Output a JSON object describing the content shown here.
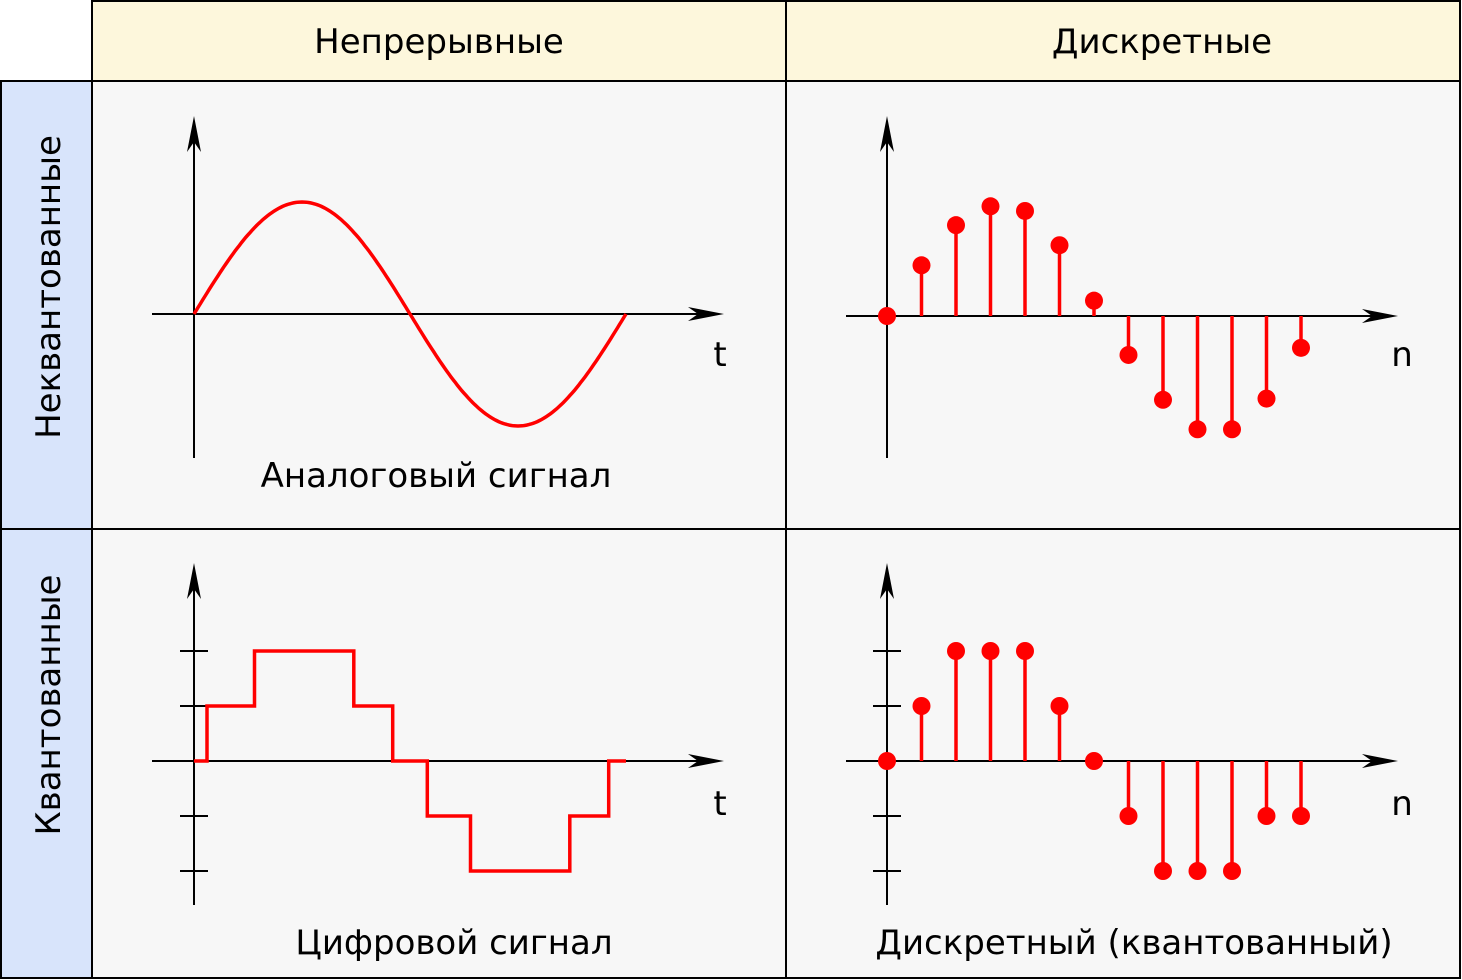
{
  "headers": {
    "col_continuous": "Непрерывные",
    "col_discrete": "Дискретные",
    "row_unquantized": "Неквантованные",
    "row_quantized": "Квантованные"
  },
  "panels": {
    "analog": {
      "axis_label": "t",
      "caption": "Аналоговый сигнал"
    },
    "sampled": {
      "axis_label": "n",
      "caption": ""
    },
    "digital": {
      "axis_label": "t",
      "caption": "Цифровой сигнал"
    },
    "discrete_quantized": {
      "axis_label": "n",
      "caption": "Дискретный (квантованный)"
    }
  },
  "colors": {
    "header_fill": "#fdf7dc",
    "row_header_fill": "#d8e4fb",
    "panel_fill": "#f7f7f7",
    "grid_line": "#000000",
    "signal": "#ff0000",
    "axis": "#000000"
  },
  "chart_data": [
    {
      "type": "line",
      "panel": "analog",
      "function": "sine",
      "periods": 1,
      "xlabel": "t"
    },
    {
      "type": "stem",
      "panel": "sampled",
      "xlabel": "n",
      "values": [
        0,
        0.43,
        0.77,
        0.93,
        0.89,
        0.6,
        0.13,
        -0.33,
        -0.71,
        -0.96,
        -0.96,
        -0.7,
        -0.27
      ]
    },
    {
      "type": "step",
      "panel": "digital",
      "xlabel": "t",
      "levels": [
        -2,
        -1,
        0,
        1,
        2
      ],
      "steps": [
        {
          "x0": 0,
          "x1": 0.03,
          "y": 0
        },
        {
          "x0": 0.03,
          "x1": 0.14,
          "y": 1
        },
        {
          "x0": 0.14,
          "x1": 0.37,
          "y": 2
        },
        {
          "x0": 0.37,
          "x1": 0.46,
          "y": 1
        },
        {
          "x0": 0.46,
          "x1": 0.54,
          "y": 0
        },
        {
          "x0": 0.54,
          "x1": 0.64,
          "y": -1
        },
        {
          "x0": 0.64,
          "x1": 0.87,
          "y": -2
        },
        {
          "x0": 0.87,
          "x1": 0.96,
          "y": -1
        },
        {
          "x0": 0.96,
          "x1": 1.0,
          "y": 0
        }
      ]
    },
    {
      "type": "stem",
      "panel": "discrete_quantized",
      "xlabel": "n",
      "levels": [
        -2,
        -1,
        0,
        1,
        2
      ],
      "values": [
        0,
        1,
        2,
        2,
        2,
        1,
        0,
        -1,
        -2,
        -2,
        -2,
        -1,
        -1
      ]
    }
  ]
}
